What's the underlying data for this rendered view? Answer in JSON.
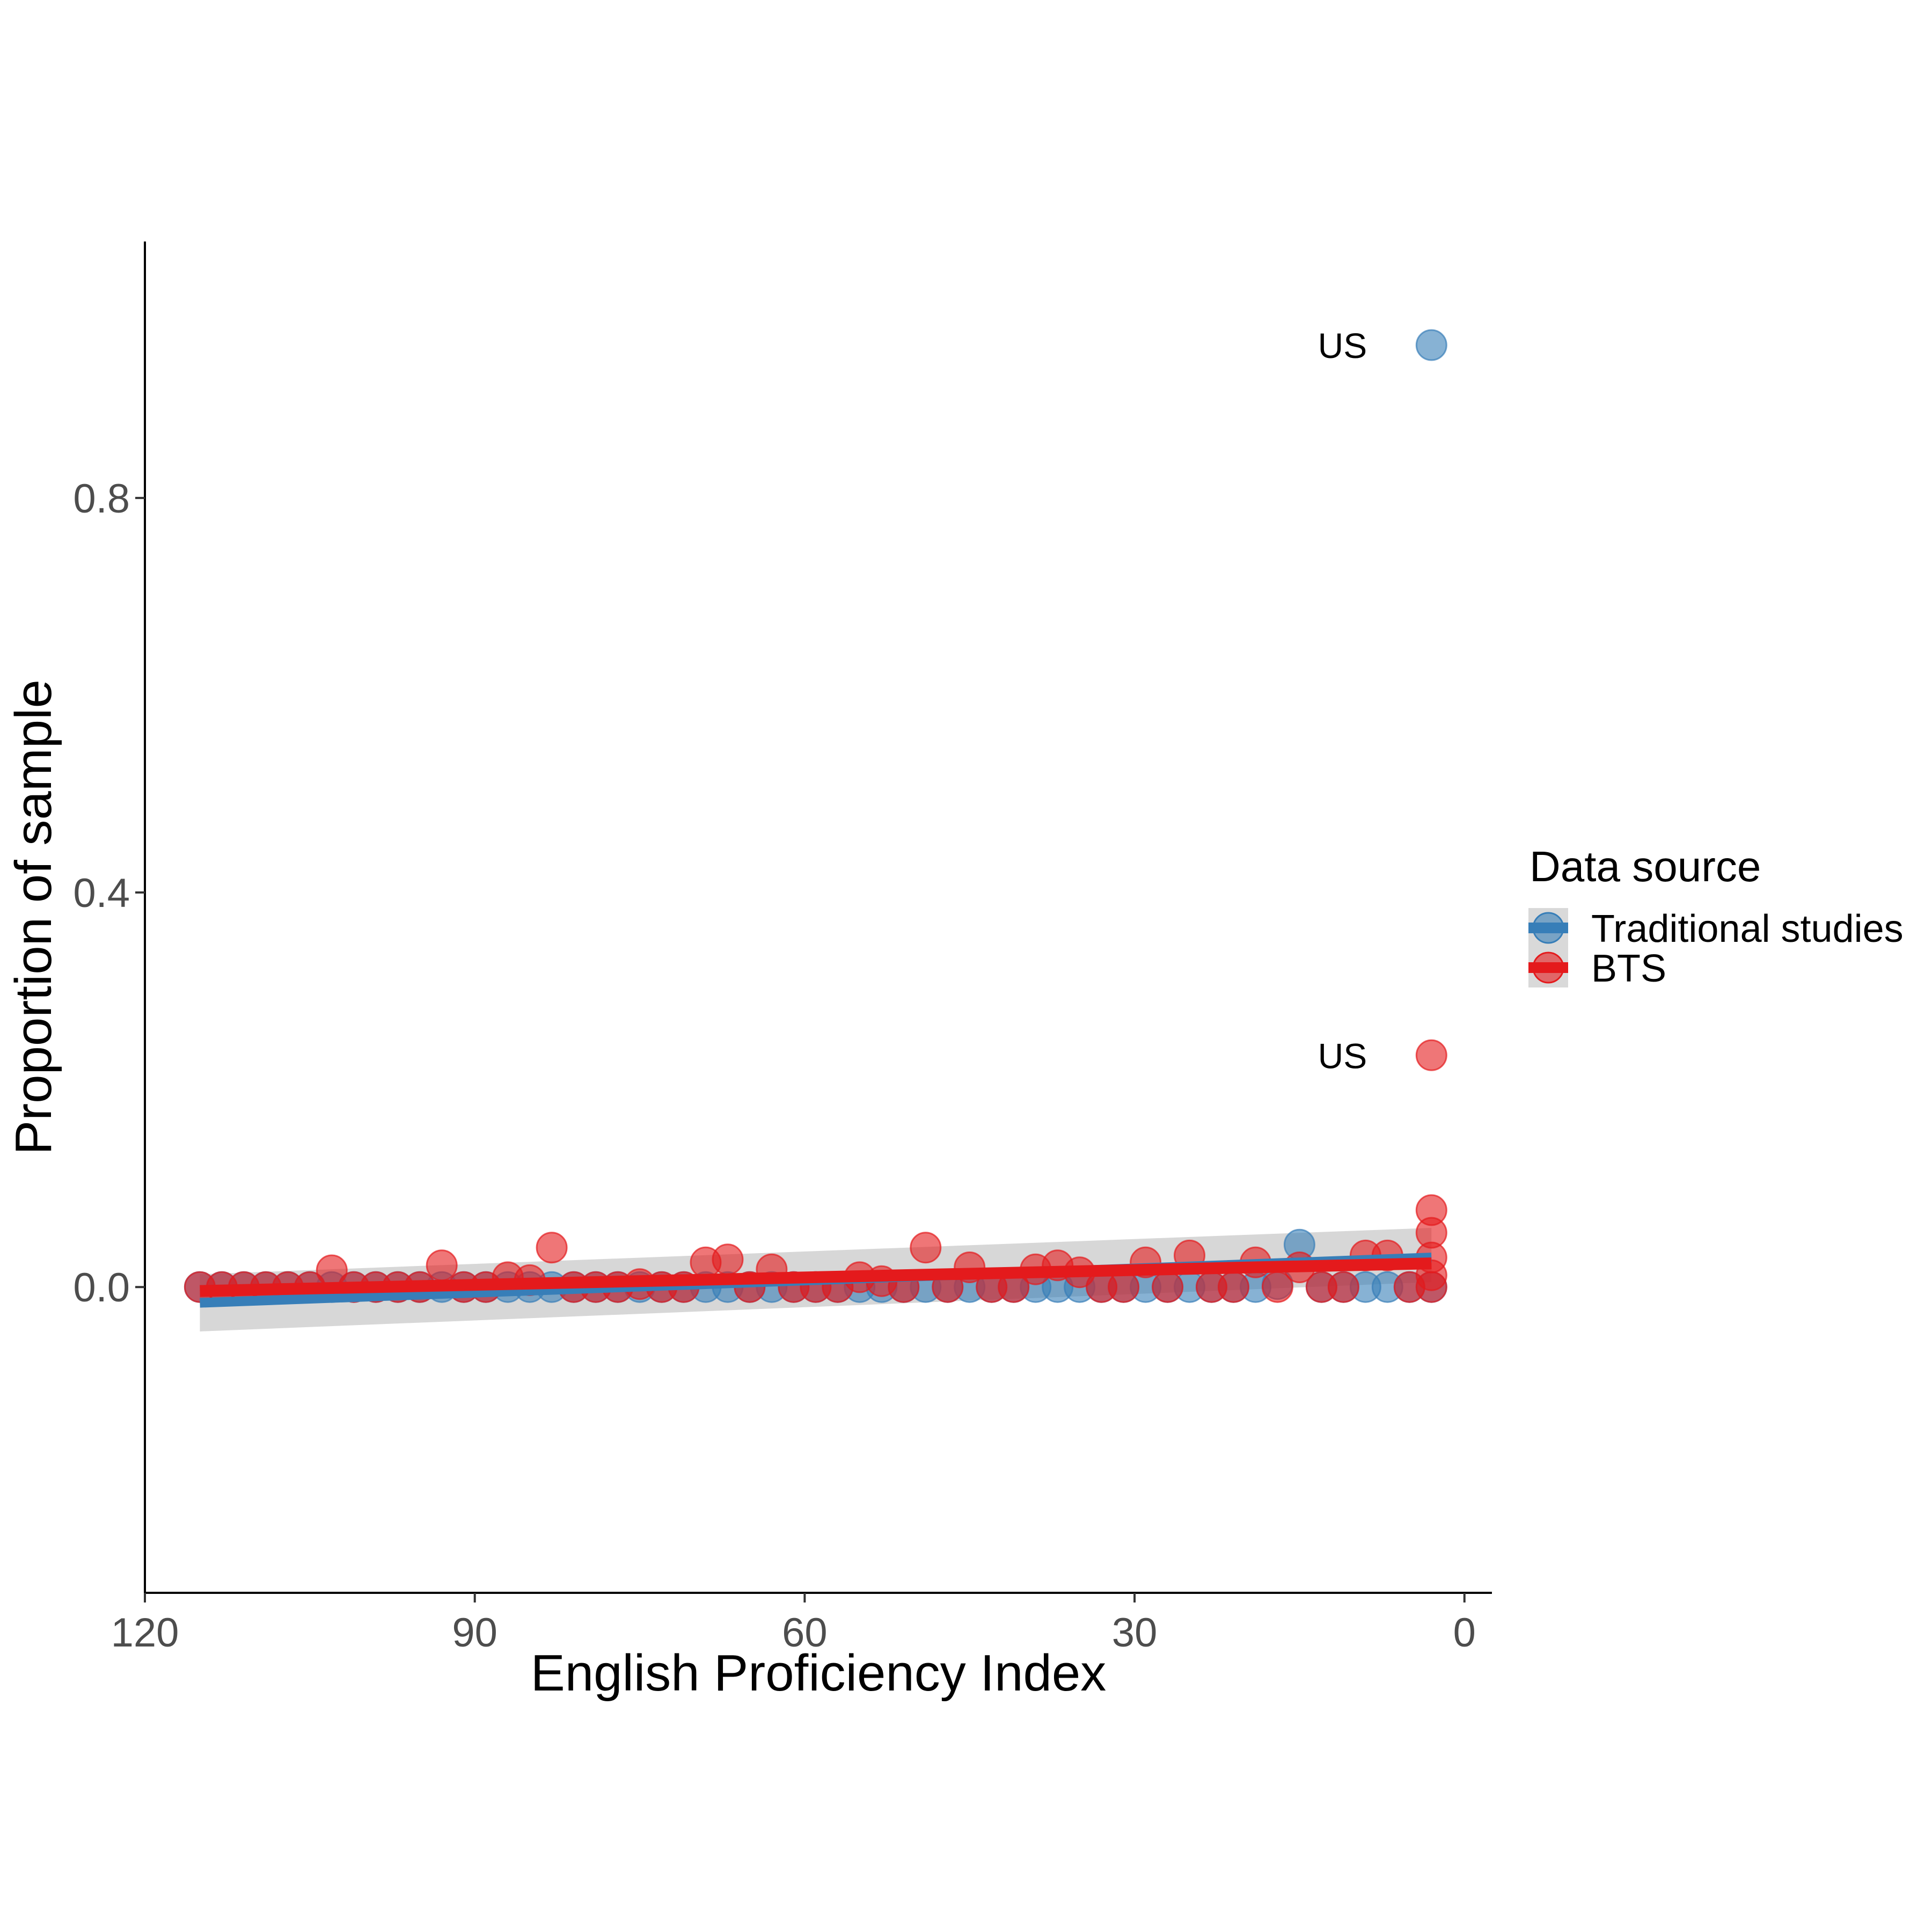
{
  "chart_data": {
    "type": "scatter",
    "title": "",
    "xlabel": "English Proficiency Index",
    "ylabel": "Proportion of sample",
    "xlim": [
      120,
      -2.5
    ],
    "x_reversed": true,
    "ylim": [
      -0.31,
      1.06
    ],
    "xticks": [
      120,
      90,
      60,
      30,
      0
    ],
    "xtick_labels": [
      "120",
      "90",
      "60",
      "30",
      "0"
    ],
    "yticks": [
      0.0,
      0.4,
      0.8
    ],
    "ytick_labels": [
      "0.0",
      "0.4",
      "0.8"
    ],
    "grid": false,
    "legend": {
      "title": "Data source",
      "placement": "right",
      "entries": [
        "Traditional studies",
        "BTS"
      ]
    },
    "colors": {
      "Traditional studies": "#377eb8",
      "BTS": "#e41a1c",
      "band": "#bdbdbd"
    },
    "series": [
      {
        "name": "Traditional studies",
        "x": [
          115,
          113,
          111,
          109,
          107,
          105,
          103,
          101,
          99,
          97,
          95,
          93,
          91,
          89,
          87,
          85,
          83,
          81,
          79,
          77,
          75,
          73,
          71,
          69,
          67,
          65,
          63,
          61,
          59,
          57,
          55,
          53,
          51,
          49,
          47,
          45,
          43,
          41,
          39,
          37,
          35,
          33,
          31,
          29,
          27,
          25,
          23,
          21,
          19,
          17,
          15,
          13,
          11,
          9,
          7,
          5,
          3,
          3
        ],
        "y": [
          0,
          0,
          0,
          0,
          0,
          0,
          0,
          0,
          0,
          0,
          0,
          0,
          0,
          0,
          0,
          0,
          0,
          0,
          0,
          0,
          0,
          0,
          0,
          0,
          0,
          0,
          0,
          0,
          0,
          0,
          0,
          0,
          0,
          0,
          0,
          0,
          0,
          0,
          0,
          0,
          0,
          0,
          0,
          0,
          0,
          0,
          0,
          0,
          0,
          0.003,
          0.043,
          0,
          0,
          0,
          0,
          0,
          0,
          0.955
        ],
        "fit": {
          "x": [
            115,
            3
          ],
          "y": [
            -0.016,
            0.03
          ]
        },
        "ci_band": {
          "x": [
            115,
            3
          ],
          "lower": [
            -0.045,
            0.005
          ],
          "upper": [
            0.013,
            0.06
          ]
        }
      },
      {
        "name": "BTS",
        "x": [
          115,
          113,
          111,
          109,
          107,
          105,
          103,
          101,
          99,
          97,
          95,
          93,
          91,
          89,
          87,
          85,
          83,
          81,
          79,
          77,
          75,
          73,
          71,
          69,
          67,
          65,
          63,
          61,
          59,
          57,
          55,
          53,
          51,
          49,
          47,
          45,
          43,
          41,
          39,
          37,
          35,
          33,
          31,
          29,
          27,
          25,
          23,
          21,
          19,
          17,
          15,
          13,
          11,
          9,
          7,
          5,
          3,
          3,
          3,
          3,
          3,
          3
        ],
        "y": [
          0,
          0,
          0,
          0,
          0,
          0,
          0.017,
          0,
          0,
          0,
          0,
          0.022,
          0,
          0,
          0.01,
          0.007,
          0.04,
          0,
          0,
          0,
          0.003,
          0,
          0,
          0.025,
          0.028,
          0,
          0.018,
          0,
          0,
          0,
          0.01,
          0.006,
          0,
          0.04,
          0,
          0.02,
          0,
          0,
          0.018,
          0.022,
          0.015,
          0,
          0,
          0.025,
          0,
          0.032,
          0,
          0,
          0.025,
          0,
          0.02,
          0,
          0,
          0.032,
          0.032,
          0,
          0.012,
          0.03,
          0.055,
          0.078,
          0.235,
          0
        ],
        "fit": {
          "x": [
            115,
            3
          ],
          "y": [
            -0.004,
            0.024
          ]
        }
      }
    ],
    "annotations": [
      {
        "text": "US",
        "series": "Traditional studies",
        "x": 3,
        "y": 0.955
      },
      {
        "text": "US",
        "series": "BTS",
        "x": 3,
        "y": 0.235
      }
    ]
  }
}
